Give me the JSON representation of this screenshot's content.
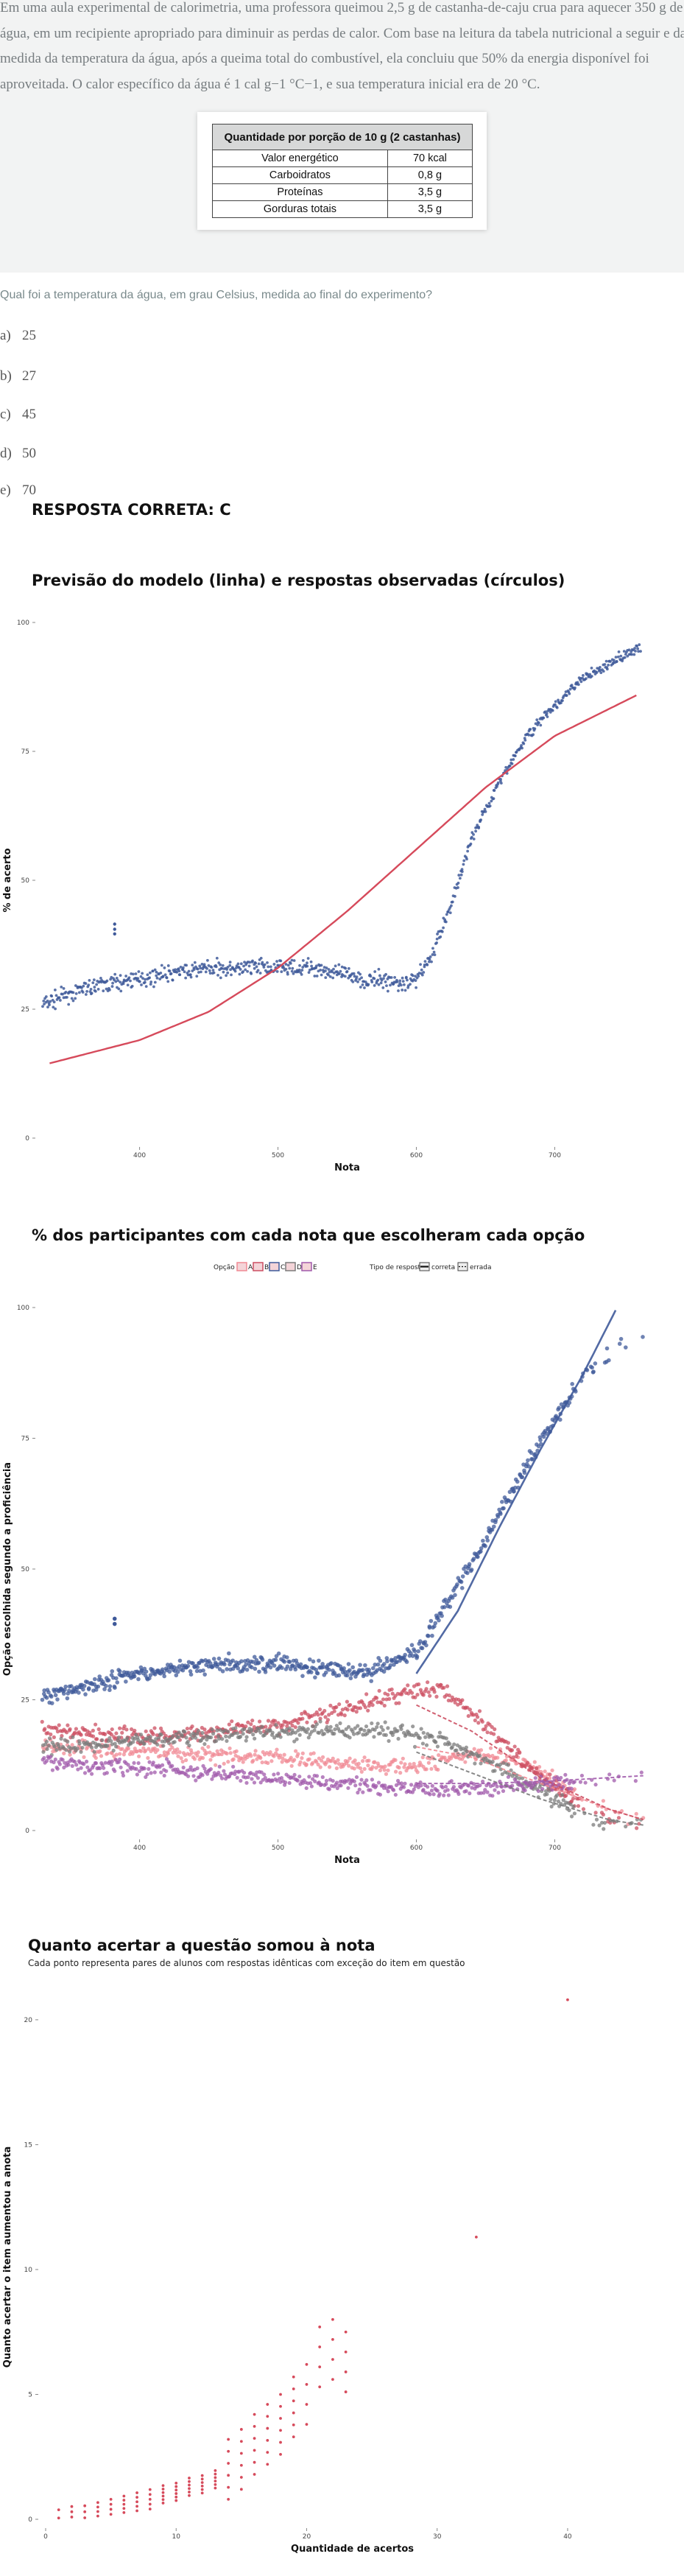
{
  "question": {
    "statement": "Em uma aula experimental de calorimetria, uma professora queimou 2,5 g de castanha-de-caju crua para aquecer 350 g de água, em um recipiente apropriado para diminuir as perdas de calor. Com base na leitura da tabela nutricional a seguir e da medida da temperatura da água, após a queima total do combustível, ela concluiu que 50% da energia disponível foi aproveitada. O calor específico da água é 1 cal g−1 °C−1, e sua temperatura inicial era de 20 °C.",
    "table": {
      "header": "Quantidade por porção de 10 g (2 castanhas)",
      "rows": [
        [
          "Valor energético",
          "70 kcal"
        ],
        [
          "Carboidratos",
          "0,8 g"
        ],
        [
          "Proteínas",
          "3,5 g"
        ],
        [
          "Gorduras totais",
          "3,5 g"
        ]
      ]
    },
    "prompt": "Qual foi a temperatura da água, em grau Celsius, medida ao final do experimento?",
    "options": [
      {
        "letter": "a)",
        "value": "25"
      },
      {
        "letter": "b)",
        "value": "27"
      },
      {
        "letter": "c)",
        "value": "45"
      },
      {
        "letter": "d)",
        "value": "50"
      },
      {
        "letter": "e)",
        "value": "70"
      }
    ],
    "answer": "RESPOSTA CORRETA: C"
  },
  "chart_data": [
    {
      "type": "scatter",
      "title": "Previsão do modelo (linha) e respostas observadas (círculos)",
      "xlabel": "Nota",
      "ylabel": "% de acerto",
      "xlim": [
        330,
        770
      ],
      "ylim": [
        0,
        100
      ],
      "xticks": [
        "400",
        "500",
        "600",
        "700"
      ],
      "yticks": [
        "0",
        "25",
        "50",
        "75",
        "100"
      ],
      "series": [
        {
          "role": "observed",
          "color": "#3f5a9a",
          "x": [
            330,
            360,
            400,
            450,
            500,
            530,
            560,
            590,
            600,
            610,
            625,
            640,
            660,
            680,
            700,
            720,
            740,
            760
          ],
          "y": [
            26,
            29,
            31,
            33,
            33,
            33,
            31,
            30,
            31,
            35,
            45,
            58,
            69,
            78,
            84,
            89,
            92,
            95
          ]
        },
        {
          "role": "model",
          "color": "#d64a5b",
          "x": [
            335,
            400,
            450,
            500,
            550,
            600,
            650,
            700,
            760
          ],
          "y": [
            14.5,
            19,
            24.5,
            33,
            44,
            56,
            68,
            78,
            86
          ]
        }
      ]
    },
    {
      "type": "scatter",
      "title": "% dos participantes com cada nota que escolheram cada opção",
      "xlabel": "Nota",
      "ylabel": "Opção escolhida segundo a proficiência",
      "xlim": [
        330,
        770
      ],
      "ylim": [
        0,
        100
      ],
      "xticks": [
        "400",
        "500",
        "600",
        "700"
      ],
      "yticks": [
        "0",
        "25",
        "50",
        "75",
        "100"
      ],
      "legend": {
        "option_title": "Opção",
        "option_keys": [
          "A",
          "B",
          "C",
          "D",
          "E"
        ],
        "type_title": "Tipo de resposta",
        "type_keys": [
          "correta",
          "errada"
        ]
      },
      "series": [
        {
          "name": "A",
          "color": "#f08a94",
          "x": [
            335,
            400,
            500,
            600,
            640,
            680,
            720,
            760
          ],
          "y": [
            16,
            15,
            14,
            12,
            15,
            13,
            6,
            2
          ]
        },
        {
          "name": "B",
          "color": "#cc4f62",
          "x": [
            335,
            400,
            500,
            600,
            620,
            650,
            690,
            730,
            760
          ],
          "y": [
            19,
            18,
            20,
            27,
            27,
            20,
            10,
            3,
            1
          ]
        },
        {
          "name": "C",
          "color": "#3f5a9a",
          "x": [
            335,
            400,
            450,
            500,
            560,
            600,
            640,
            680,
            720,
            760
          ],
          "y": [
            26,
            30,
            32,
            32,
            30,
            34,
            51,
            70,
            87,
            95
          ]
        },
        {
          "name": "D",
          "color": "#7b7b7b",
          "x": [
            335,
            400,
            500,
            580,
            620,
            660,
            700,
            730,
            760
          ],
          "y": [
            16,
            17,
            19,
            19,
            17,
            12,
            6,
            2,
            2
          ]
        },
        {
          "name": "E",
          "color": "#a05aab",
          "x": [
            335,
            400,
            500,
            600,
            650,
            700,
            760
          ],
          "y": [
            13,
            12,
            10,
            8,
            8,
            9,
            10
          ]
        }
      ]
    },
    {
      "type": "scatter",
      "title": "Quanto acertar a questão somou à nota",
      "subtitle": "Cada ponto representa pares de alunos com respostas idênticas com exceção do item em questão",
      "xlabel": "Quantidade de acertos",
      "ylabel": "Quanto acertar o item aumentou a anota",
      "xlim": [
        0,
        47
      ],
      "ylim": [
        0,
        21
      ],
      "xticks": [
        "0",
        "10",
        "20",
        "30",
        "40"
      ],
      "yticks": [
        "0",
        "5",
        "10",
        "15",
        "20"
      ],
      "color": "#d64a5b",
      "x": [
        1,
        2,
        3,
        4,
        5,
        6,
        7,
        8,
        9,
        10,
        11,
        12,
        13,
        14,
        15,
        16,
        17,
        18,
        19,
        20,
        21,
        22,
        23,
        33,
        40
      ],
      "y": [
        0.2,
        0.3,
        0.3,
        0.4,
        0.5,
        0.6,
        0.7,
        0.8,
        1.0,
        1.1,
        1.3,
        1.4,
        1.6,
        2.0,
        2.4,
        3.0,
        3.4,
        3.8,
        4.5,
        5.0,
        6.5,
        6.8,
        6.3,
        11.3,
        20.8
      ]
    }
  ]
}
